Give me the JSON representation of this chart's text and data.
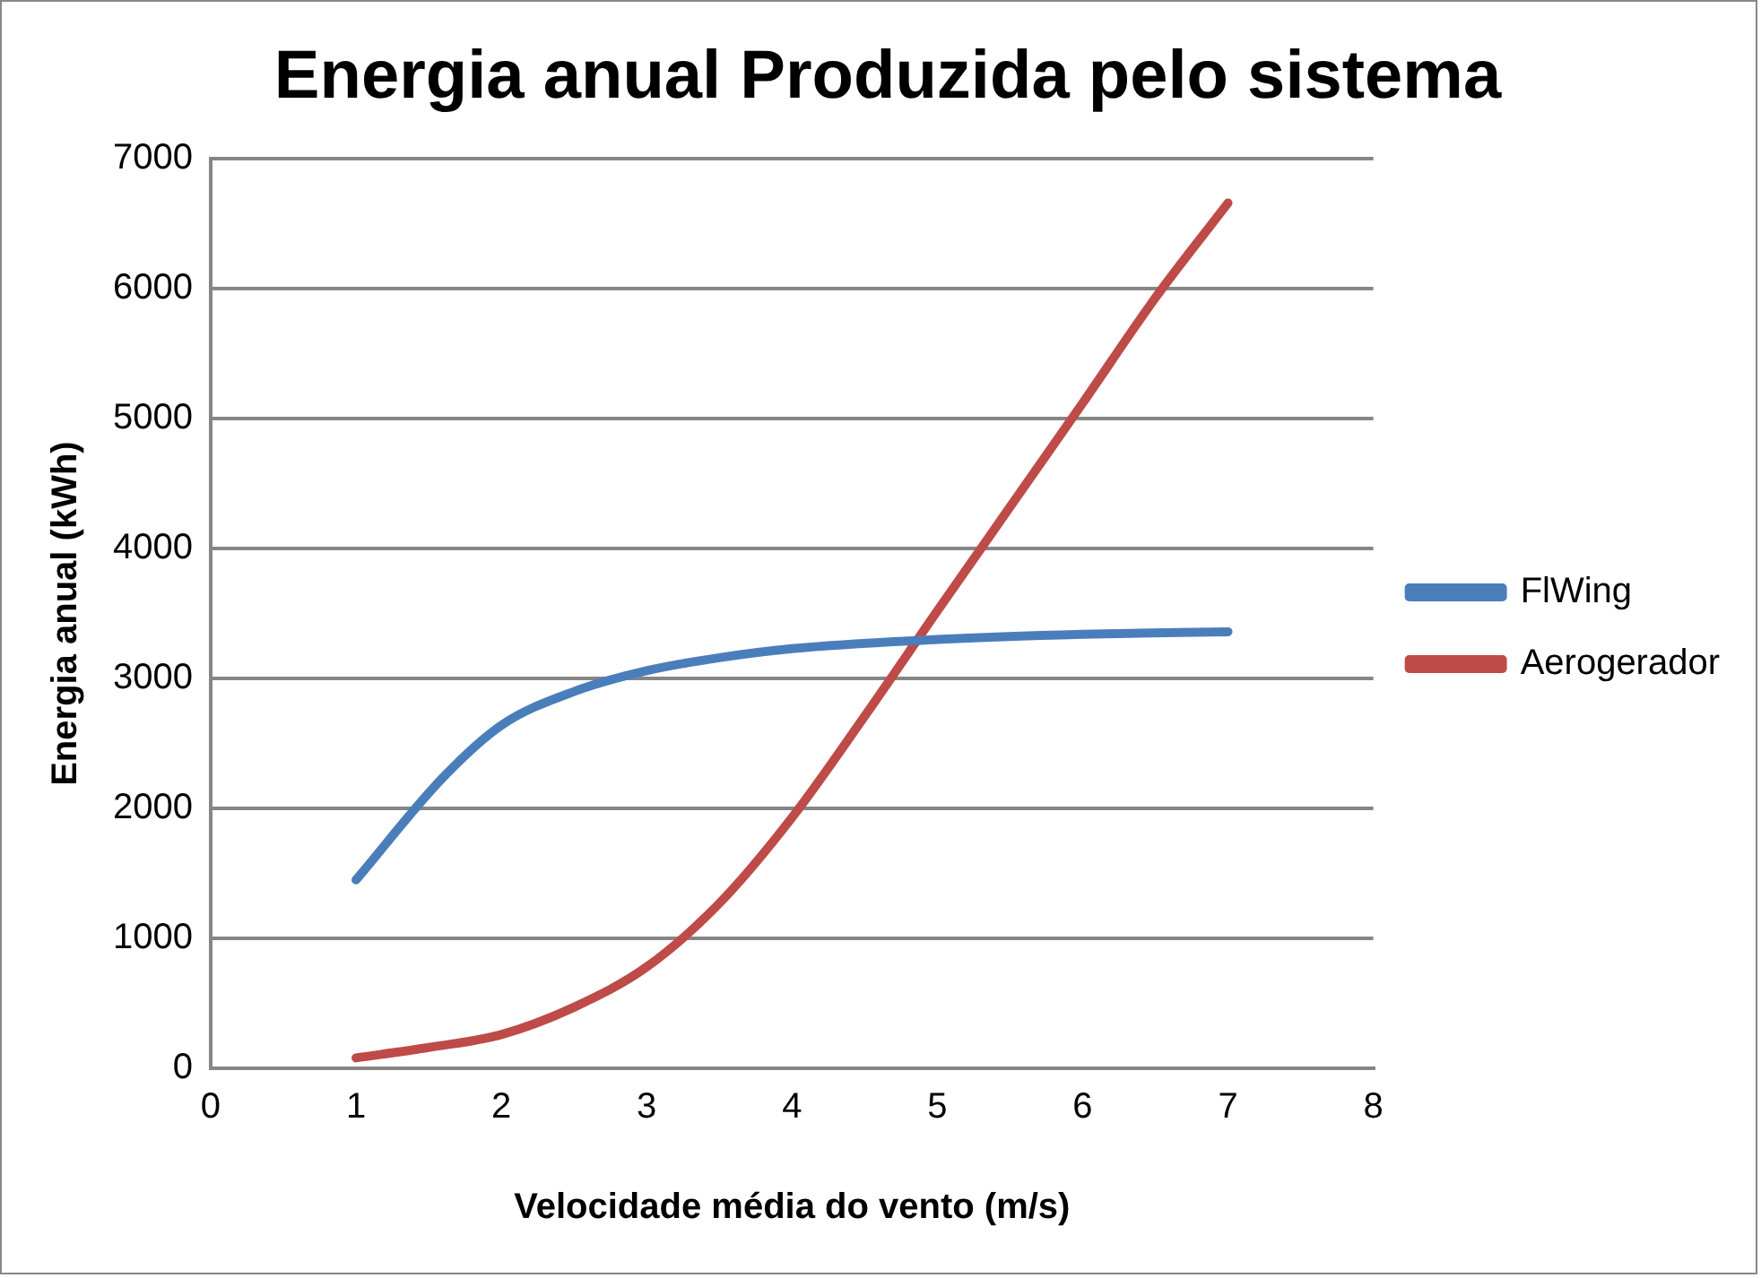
{
  "chart_data": {
    "type": "line",
    "title": "Energia anual Produzida pelo sistema",
    "xlabel": "Velocidade média do vento (m/s)",
    "ylabel": "Energia anual (kWh)",
    "series": [
      {
        "name": "FlWing",
        "color": "#4a7ebb",
        "x": [
          1,
          1.6,
          2,
          2.5,
          3,
          3.5,
          4,
          5,
          6,
          7
        ],
        "values": [
          1450,
          2240,
          2640,
          2900,
          3060,
          3160,
          3230,
          3300,
          3340,
          3360
        ]
      },
      {
        "name": "Aerogerador",
        "color": "#be4b48",
        "x": [
          1,
          1.5,
          2,
          2.5,
          3,
          3.5,
          4,
          4.5,
          5,
          5.5,
          6,
          6.5,
          7
        ],
        "values": [
          80,
          160,
          260,
          470,
          780,
          1270,
          1930,
          2710,
          3520,
          4320,
          5120,
          5930,
          6660
        ]
      }
    ],
    "xlim": [
      0,
      8
    ],
    "xticks": [
      0,
      1,
      2,
      3,
      4,
      5,
      6,
      7,
      8
    ],
    "ylim": [
      0,
      7000
    ],
    "yticks": [
      0,
      1000,
      2000,
      3000,
      4000,
      5000,
      6000,
      7000
    ],
    "grid": "y",
    "legend": "right",
    "marker": "none",
    "line_style": "solid"
  }
}
